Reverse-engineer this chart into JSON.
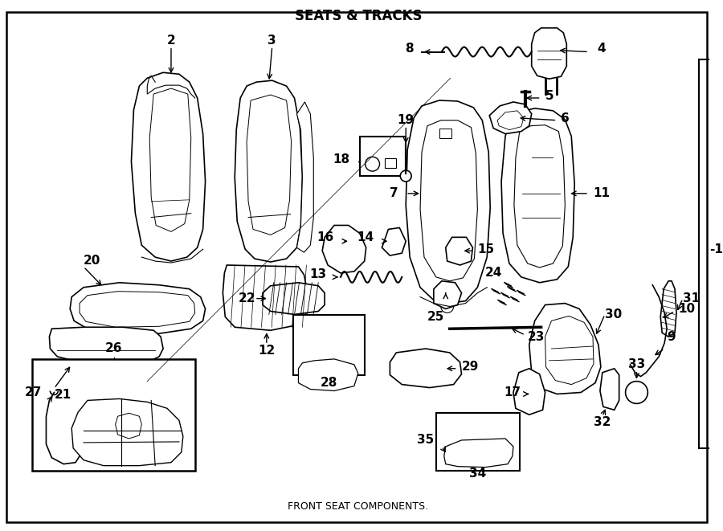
{
  "title": "SEATS & TRACKS",
  "subtitle": "FRONT SEAT COMPONENTS.",
  "bg_color": "#ffffff",
  "border_color": "#000000",
  "fig_width": 9.0,
  "fig_height": 6.61,
  "dpi": 100
}
